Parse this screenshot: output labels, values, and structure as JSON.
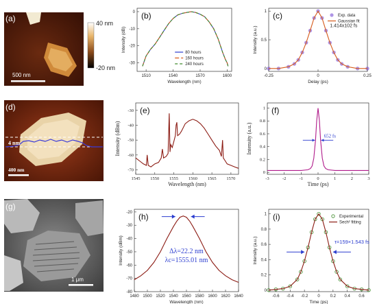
{
  "panels": {
    "a": {
      "label": "(a)",
      "scale_top": "40 nm",
      "scale_bottom": "-20 nm",
      "scalebar": "500 nm"
    },
    "d": {
      "label": "(d)",
      "height_label": "4 nm",
      "scalebar": "400 nm"
    },
    "g": {
      "label": "(g)",
      "scalebar": "1 μm"
    }
  },
  "colors": {
    "blue": "#2a3ccf",
    "darkred": "#8b1a12",
    "green": "#3e8a2a",
    "magenta": "#b01a8a",
    "purple": "#7b4fd6",
    "orange": "#d65a1a"
  },
  "chart_data": [
    {
      "id": "b",
      "label": "(b)",
      "type": "line",
      "xlabel": "Wavelength (nm)",
      "ylabel": "Intensity (dB)",
      "xlim": [
        1500,
        1605
      ],
      "ylim": [
        -35,
        2
      ],
      "xticks": [
        1510,
        1540,
        1570,
        1600
      ],
      "yticks": [
        0,
        -10,
        -20,
        -30
      ],
      "legend_position": "bottom-center",
      "series": [
        {
          "name": "80 hours",
          "color": "#2a3ccf",
          "dash": "",
          "x": [
            1506,
            1508,
            1510,
            1515,
            1520,
            1525,
            1530,
            1535,
            1540,
            1545,
            1550,
            1555,
            1560,
            1565,
            1570,
            1575,
            1580,
            1585,
            1590,
            1595,
            1598,
            1600,
            1601
          ],
          "y": [
            -32,
            -29,
            -26,
            -22,
            -19,
            -15,
            -11,
            -7,
            -4,
            -2,
            -1,
            -0.5,
            0,
            -0.5,
            -1.5,
            -3,
            -6,
            -10,
            -16,
            -24,
            -28,
            -30,
            -32
          ]
        },
        {
          "name": "160 hours",
          "color": "#d65a1a",
          "dash": "6,3",
          "x": [
            1506,
            1508,
            1510,
            1515,
            1520,
            1525,
            1530,
            1535,
            1540,
            1545,
            1550,
            1555,
            1560,
            1565,
            1570,
            1575,
            1580,
            1585,
            1590,
            1595,
            1598,
            1600,
            1601
          ],
          "y": [
            -32,
            -29,
            -26,
            -22,
            -19,
            -15,
            -11,
            -7,
            -4,
            -2,
            -1,
            -0.5,
            0,
            -0.5,
            -1.5,
            -3,
            -6,
            -10,
            -16,
            -24,
            -28,
            -30,
            -32
          ]
        },
        {
          "name": "240 hours",
          "color": "#3e8a2a",
          "dash": "4,3",
          "x": [
            1506,
            1508,
            1510,
            1515,
            1520,
            1525,
            1530,
            1535,
            1540,
            1545,
            1550,
            1555,
            1560,
            1565,
            1570,
            1575,
            1580,
            1585,
            1590,
            1595,
            1598,
            1600,
            1601
          ],
          "y": [
            -32,
            -29,
            -26,
            -22,
            -19,
            -15,
            -11,
            -7,
            -4,
            -2,
            -1,
            -0.5,
            0,
            -0.5,
            -1.5,
            -3,
            -6,
            -10,
            -16,
            -24,
            -28,
            -30,
            -32
          ]
        }
      ]
    },
    {
      "id": "c",
      "label": "(c)",
      "type": "line",
      "xlabel": "Delay (ps)",
      "ylabel": "Intensity (a.u.)",
      "xlim": [
        -0.25,
        0.25
      ],
      "ylim": [
        -0.05,
        1.05
      ],
      "xticks": [
        -0.25,
        0.0,
        0.25
      ],
      "yticks": [
        0.0,
        0.5,
        1.0
      ],
      "annotation": "1.414x102 fs",
      "legend_position": "top-right",
      "series": [
        {
          "name": "Exp. data",
          "color": "#7b4fd6",
          "style": "markers",
          "x": [
            -0.25,
            -0.2,
            -0.15,
            -0.12,
            -0.1,
            -0.08,
            -0.06,
            -0.04,
            -0.02,
            0,
            0.02,
            0.04,
            0.06,
            0.08,
            0.1,
            0.12,
            0.15,
            0.2,
            0.25
          ],
          "y": [
            0.0,
            0.0,
            0.03,
            0.08,
            0.15,
            0.28,
            0.45,
            0.66,
            0.88,
            1.0,
            0.88,
            0.66,
            0.45,
            0.28,
            0.15,
            0.08,
            0.03,
            0.0,
            0.0
          ]
        },
        {
          "name": "Gaussian fit",
          "color": "#d65a1a",
          "style": "line",
          "x": [
            -0.25,
            -0.2,
            -0.15,
            -0.12,
            -0.1,
            -0.08,
            -0.06,
            -0.04,
            -0.02,
            0,
            0.02,
            0.04,
            0.06,
            0.08,
            0.1,
            0.12,
            0.15,
            0.2,
            0.25
          ],
          "y": [
            0.0,
            0.0,
            0.03,
            0.08,
            0.15,
            0.28,
            0.45,
            0.66,
            0.88,
            1.0,
            0.88,
            0.66,
            0.45,
            0.28,
            0.15,
            0.08,
            0.03,
            0.0,
            0.0
          ]
        }
      ]
    },
    {
      "id": "e",
      "label": "(e)",
      "type": "line",
      "xlabel": "Wavelength (nm)",
      "ylabel": "Intensity (dBm)",
      "xlim": [
        1545,
        1572
      ],
      "ylim": [
        -73,
        -25
      ],
      "xticks": [
        1545,
        1550,
        1555,
        1560,
        1565,
        1570
      ],
      "yticks": [
        -30,
        -40,
        -50,
        -60,
        -70
      ],
      "series": [
        {
          "name": "",
          "color": "#8b1a12",
          "x": [
            1545,
            1546,
            1547,
            1547.8,
            1548,
            1548.3,
            1549,
            1550,
            1551,
            1551.7,
            1552,
            1552.3,
            1553,
            1553.5,
            1553.8,
            1554,
            1554.2,
            1554.6,
            1555,
            1555.4,
            1555.6,
            1555.8,
            1556,
            1556.5,
            1557,
            1558,
            1559,
            1560,
            1561,
            1562,
            1563,
            1564,
            1565,
            1566,
            1567,
            1567.5,
            1567.8,
            1568,
            1568.5,
            1569,
            1570,
            1571,
            1572
          ],
          "y": [
            -62,
            -64,
            -66,
            -67,
            -60,
            -67,
            -68,
            -66,
            -65,
            -62,
            -56,
            -62,
            -61,
            -59,
            -32,
            -58,
            -53,
            -55,
            -51,
            -47,
            -40,
            -38,
            -47,
            -46,
            -44,
            -39,
            -37,
            -36,
            -37,
            -39,
            -42,
            -46,
            -50,
            -54,
            -57,
            -61,
            -50,
            -62,
            -64,
            -66,
            -67,
            -68,
            -69
          ]
        }
      ]
    },
    {
      "id": "f",
      "label": "(f)",
      "type": "line",
      "xlabel": "Time (ps)",
      "ylabel": "Intensity (a.u.)",
      "xlim": [
        -3,
        3
      ],
      "ylim": [
        -0.03,
        1.08
      ],
      "xticks": [
        -3,
        -2,
        -1,
        0,
        1,
        2,
        3
      ],
      "yticks": [
        0.0,
        0.2,
        0.4,
        0.6,
        0.8,
        1.0
      ],
      "annotation": "652 fs",
      "series": [
        {
          "name": "",
          "color": "#b01a8a",
          "x": [
            -3,
            -2,
            -1,
            -0.6,
            -0.45,
            -0.35,
            -0.25,
            -0.15,
            -0.08,
            0,
            0.08,
            0.15,
            0.25,
            0.35,
            0.45,
            0.6,
            1,
            2,
            3
          ],
          "y": [
            0.03,
            0.03,
            0.03,
            0.04,
            0.06,
            0.1,
            0.22,
            0.5,
            0.8,
            1.0,
            0.8,
            0.5,
            0.22,
            0.1,
            0.06,
            0.04,
            0.03,
            0.03,
            0.03
          ]
        }
      ]
    },
    {
      "id": "h",
      "label": "(h)",
      "type": "line",
      "xlabel": "Wavelength (nm)",
      "ylabel": "Intensity (dBm)",
      "xlim": [
        1480,
        1640
      ],
      "ylim": [
        -80,
        -18
      ],
      "xticks": [
        1480,
        1500,
        1520,
        1540,
        1560,
        1580,
        1600,
        1620,
        1640
      ],
      "yticks": [
        -20,
        -30,
        -40,
        -50,
        -60,
        -70,
        -80
      ],
      "annotation_lines": [
        "Δλ=22.2 nm",
        "λc=1555.01 nm"
      ],
      "series": [
        {
          "name": "",
          "color": "#8b1a12",
          "x": [
            1480,
            1490,
            1500,
            1510,
            1520,
            1530,
            1540,
            1545,
            1550,
            1555,
            1560,
            1565,
            1570,
            1580,
            1590,
            1600,
            1610,
            1620,
            1630,
            1640
          ],
          "y": [
            -71,
            -68,
            -64,
            -58,
            -50,
            -40,
            -31,
            -27,
            -24,
            -23,
            -24,
            -27,
            -31,
            -40,
            -50,
            -58,
            -64,
            -68,
            -71,
            -73
          ]
        }
      ]
    },
    {
      "id": "i",
      "label": "(i)",
      "type": "line",
      "xlabel": "Time (ps)",
      "ylabel": "Intensity (a.u.)",
      "xlim": [
        -0.7,
        0.7
      ],
      "ylim": [
        -0.02,
        1.06
      ],
      "xticks": [
        -0.6,
        -0.4,
        -0.2,
        0.0,
        0.2,
        0.4,
        0.6
      ],
      "yticks": [
        0.0,
        0.2,
        0.4,
        0.6,
        0.8,
        1.0
      ],
      "annotation": "τ=159×1.543 fs",
      "legend_position": "top-right",
      "series": [
        {
          "name": "Experimental",
          "color": "#3e8a2a",
          "style": "markers",
          "x": [
            -0.7,
            -0.6,
            -0.5,
            -0.4,
            -0.3,
            -0.25,
            -0.2,
            -0.15,
            -0.1,
            -0.05,
            0,
            0.05,
            0.1,
            0.15,
            0.2,
            0.25,
            0.3,
            0.4,
            0.5,
            0.6,
            0.7
          ],
          "y": [
            0.0,
            0.01,
            0.02,
            0.05,
            0.14,
            0.24,
            0.38,
            0.56,
            0.76,
            0.93,
            1.0,
            0.93,
            0.76,
            0.56,
            0.38,
            0.24,
            0.14,
            0.05,
            0.02,
            0.01,
            0.0
          ]
        },
        {
          "name": "Sech² fitting",
          "color": "#8b1a12",
          "style": "line",
          "x": [
            -0.7,
            -0.6,
            -0.5,
            -0.4,
            -0.3,
            -0.25,
            -0.2,
            -0.15,
            -0.1,
            -0.05,
            0,
            0.05,
            0.1,
            0.15,
            0.2,
            0.25,
            0.3,
            0.4,
            0.5,
            0.6,
            0.7
          ],
          "y": [
            0.0,
            0.01,
            0.02,
            0.05,
            0.14,
            0.24,
            0.38,
            0.56,
            0.76,
            0.93,
            1.0,
            0.93,
            0.76,
            0.56,
            0.38,
            0.24,
            0.14,
            0.05,
            0.02,
            0.01,
            0.0
          ]
        }
      ]
    }
  ]
}
